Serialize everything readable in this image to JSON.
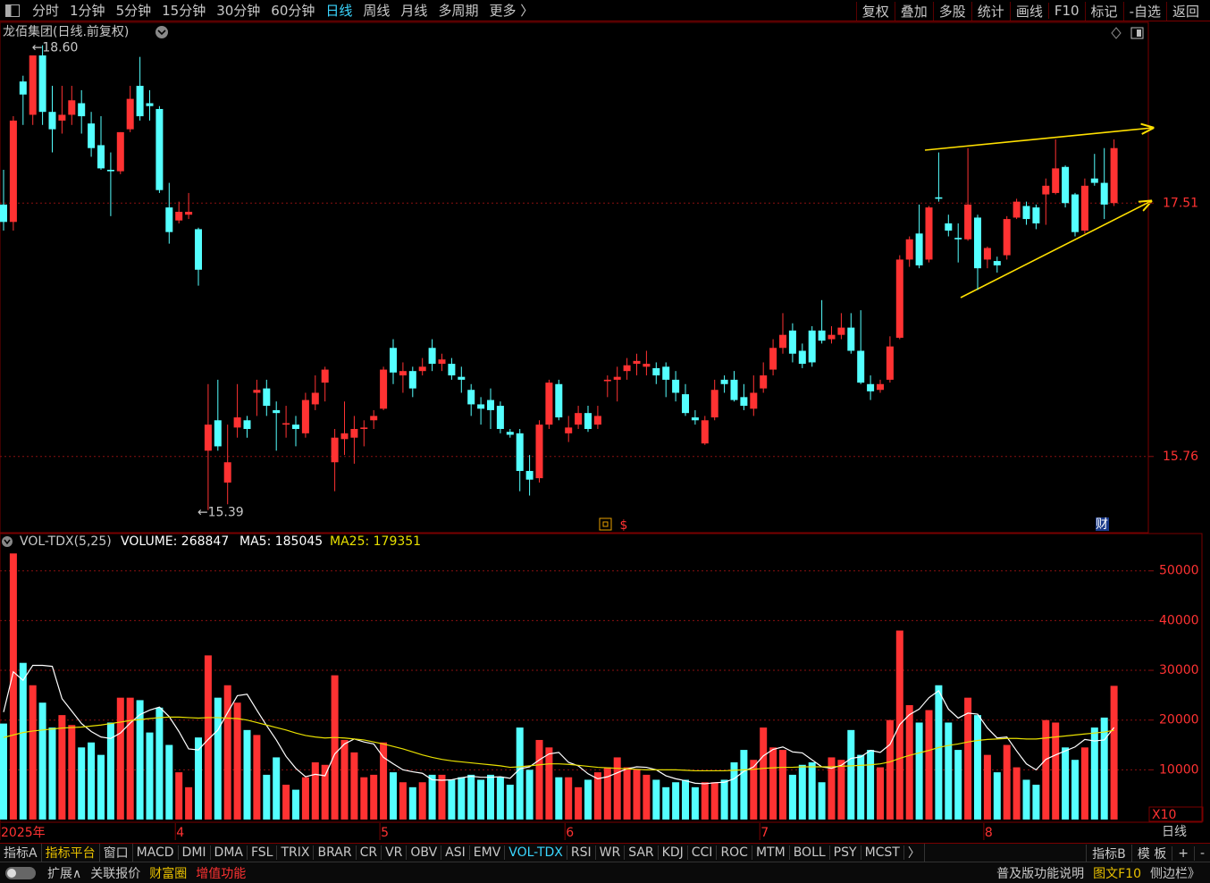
{
  "toolbar": {
    "left": [
      {
        "text": "分时"
      },
      {
        "text": "1分钟"
      },
      {
        "text": "5分钟"
      },
      {
        "text": "15分钟"
      },
      {
        "text": "30分钟"
      },
      {
        "text": "60分钟"
      },
      {
        "text": "日线",
        "color": "#3ad6ff"
      },
      {
        "text": "周线"
      },
      {
        "text": "月线"
      },
      {
        "text": "多周期"
      },
      {
        "text": "更多 〉"
      }
    ],
    "right": [
      {
        "text": "复权"
      },
      {
        "text": "叠加"
      },
      {
        "text": "多股"
      },
      {
        "text": "统计"
      },
      {
        "text": "画线"
      },
      {
        "text": "F10"
      },
      {
        "text": "标记"
      },
      {
        "text": "-自选"
      },
      {
        "text": "返回"
      }
    ]
  },
  "title": "龙佰集团(日线.前复权)",
  "event_markers": [
    "$",
    "财"
  ],
  "chart_data": [
    {
      "type": "candlestick",
      "ylim": [
        15.24,
        18.74
      ],
      "yticks": [
        15.76,
        17.51
      ],
      "grid": true,
      "up_color": "#ff3232",
      "down_color": "#54ffff",
      "flat_color": "#ffffff",
      "open": [
        17.5,
        17.38,
        18.35,
        18.12,
        18.53,
        18.14,
        18.08,
        18.12,
        18.2,
        18.06,
        17.91,
        17.74,
        17.73,
        18.02,
        18.32,
        18.2,
        18.16,
        17.48,
        17.39,
        17.43,
        17.33,
        15.8,
        16.01,
        15.58,
        15.96,
        16.01,
        16.2,
        16.23,
        16.08,
        15.98,
        15.98,
        15.92,
        16.12,
        16.27,
        15.72,
        15.88,
        15.89,
        15.95,
        16.01,
        16.09,
        16.51,
        16.32,
        16.35,
        16.35,
        16.51,
        16.4,
        16.4,
        16.31,
        16.22,
        16.12,
        16.15,
        16.11,
        15.93,
        15.92,
        15.66,
        15.61,
        15.98,
        16.26,
        15.92,
        15.98,
        16.06,
        15.98,
        16.28,
        16.29,
        16.35,
        16.4,
        16.38,
        16.37,
        16.38,
        16.29,
        16.19,
        16.03,
        15.85,
        16.03,
        16.29,
        16.29,
        16.17,
        16.09,
        16.23,
        16.36,
        16.51,
        16.63,
        16.49,
        16.63,
        16.63,
        16.57,
        16.6,
        16.65,
        16.49,
        16.26,
        16.22,
        16.29,
        16.58,
        17.12,
        17.3,
        17.12,
        17.55,
        17.37,
        17.27,
        17.26,
        17.41,
        17.12,
        17.11,
        17.15,
        17.41,
        17.49,
        17.48,
        17.57,
        17.58,
        17.76,
        17.57,
        17.32,
        17.68,
        17.65,
        17.51
      ],
      "high": [
        17.74,
        18.11,
        18.39,
        18.52,
        18.6,
        18.32,
        18.32,
        18.32,
        18.29,
        18.14,
        18.11,
        17.86,
        18.0,
        18.32,
        18.52,
        18.29,
        18.18,
        17.65,
        17.52,
        17.58,
        17.34,
        16.26,
        16.29,
        15.98,
        16.26,
        16.04,
        16.29,
        16.29,
        16.14,
        16.11,
        16.04,
        16.2,
        16.32,
        16.38,
        15.95,
        16.14,
        16.04,
        16.01,
        16.08,
        16.38,
        16.57,
        16.41,
        16.38,
        16.44,
        16.57,
        16.47,
        16.44,
        16.38,
        16.26,
        16.17,
        16.23,
        16.14,
        15.95,
        15.95,
        15.77,
        16.01,
        16.29,
        16.29,
        16.04,
        16.11,
        16.11,
        16.11,
        16.32,
        16.38,
        16.44,
        16.47,
        16.49,
        16.41,
        16.41,
        16.35,
        16.26,
        16.08,
        16.04,
        16.29,
        16.32,
        16.35,
        16.26,
        16.32,
        16.41,
        16.57,
        16.75,
        16.68,
        16.54,
        16.66,
        16.84,
        16.66,
        16.75,
        16.75,
        16.77,
        16.32,
        16.29,
        16.59,
        17.15,
        17.28,
        17.5,
        17.49,
        17.86,
        17.43,
        17.37,
        17.89,
        17.43,
        17.21,
        17.14,
        17.42,
        17.54,
        17.52,
        17.5,
        17.68,
        17.95,
        17.77,
        17.58,
        17.68,
        17.85,
        17.89,
        17.95
      ],
      "low": [
        17.32,
        17.32,
        18.05,
        18.05,
        18.05,
        17.86,
        17.99,
        18.05,
        17.99,
        17.83,
        17.74,
        17.42,
        17.71,
        18.0,
        18.08,
        18.08,
        17.58,
        17.23,
        17.37,
        17.4,
        16.94,
        15.39,
        15.8,
        15.43,
        15.89,
        15.89,
        16.04,
        16.04,
        15.8,
        15.89,
        15.83,
        15.89,
        16.08,
        16.14,
        15.52,
        15.77,
        15.71,
        15.83,
        15.95,
        16.08,
        16.26,
        16.2,
        16.17,
        16.32,
        16.35,
        16.35,
        16.29,
        16.2,
        16.04,
        15.98,
        15.95,
        15.92,
        15.89,
        15.52,
        15.49,
        15.58,
        15.95,
        16.01,
        15.86,
        15.95,
        15.93,
        15.95,
        16.17,
        16.14,
        16.29,
        16.32,
        16.32,
        16.26,
        16.17,
        16.14,
        16.04,
        15.98,
        15.84,
        16.01,
        16.2,
        16.14,
        16.08,
        16.04,
        16.2,
        16.32,
        16.47,
        16.41,
        16.37,
        16.38,
        16.54,
        16.54,
        16.57,
        16.47,
        16.26,
        16.15,
        16.2,
        16.27,
        16.57,
        17.07,
        17.06,
        17.1,
        17.52,
        17.28,
        17.1,
        17.25,
        16.91,
        17.06,
        17.03,
        17.12,
        17.4,
        17.36,
        17.33,
        17.36,
        17.57,
        17.48,
        17.28,
        17.3,
        17.63,
        17.4,
        17.49
      ],
      "close": [
        17.38,
        18.08,
        18.26,
        18.53,
        18.14,
        18.02,
        18.12,
        18.22,
        18.11,
        17.89,
        17.75,
        17.73,
        18.0,
        18.23,
        18.11,
        18.18,
        17.6,
        17.31,
        17.45,
        17.45,
        17.05,
        15.98,
        15.83,
        15.72,
        16.03,
        15.95,
        16.22,
        16.11,
        16.06,
        15.99,
        15.95,
        16.15,
        16.2,
        16.36,
        15.89,
        15.92,
        15.95,
        15.96,
        16.04,
        16.36,
        16.34,
        16.35,
        16.23,
        16.38,
        16.4,
        16.43,
        16.32,
        16.29,
        16.12,
        16.09,
        16.08,
        15.95,
        15.91,
        15.66,
        15.6,
        15.98,
        16.27,
        16.03,
        15.96,
        16.06,
        15.95,
        16.04,
        16.29,
        16.31,
        16.39,
        16.42,
        16.4,
        16.32,
        16.29,
        16.2,
        16.06,
        16.01,
        16.01,
        16.22,
        16.26,
        16.15,
        16.11,
        16.2,
        16.32,
        16.51,
        16.6,
        16.47,
        16.4,
        16.41,
        16.56,
        16.6,
        16.65,
        16.49,
        16.27,
        16.21,
        16.26,
        16.52,
        17.12,
        17.26,
        17.08,
        17.48,
        17.54,
        17.32,
        17.26,
        17.5,
        17.06,
        17.2,
        17.08,
        17.4,
        17.52,
        17.4,
        17.37,
        17.63,
        17.75,
        17.51,
        17.31,
        17.63,
        17.65,
        17.5,
        17.89
      ],
      "annotations": [
        {
          "x": 4,
          "value": 18.6,
          "label": "←18.60"
        },
        {
          "x": 21,
          "value": 15.39,
          "label": "←15.39"
        }
      ]
    },
    {
      "type": "bar",
      "title": "VOL-TDX(5,25)",
      "volume_label": "VOLUME: 268847",
      "ylim": [
        0,
        57500
      ],
      "yticks": [
        10000,
        20000,
        30000,
        40000,
        50000
      ],
      "grid": true,
      "scale_note": "X10",
      "period_label": "日线",
      "xticks": [
        {
          "value": 0,
          "label": "2025年"
        },
        {
          "value": 18,
          "label": "4"
        },
        {
          "value": 39,
          "label": "5"
        },
        {
          "value": 58,
          "label": "6"
        },
        {
          "value": 78,
          "label": "7"
        },
        {
          "value": 101,
          "label": "8"
        }
      ],
      "values": [
        19300,
        53500,
        31500,
        27000,
        23500,
        18500,
        21000,
        19000,
        14500,
        15500,
        13000,
        19500,
        24500,
        24500,
        24000,
        17500,
        22500,
        15000,
        9500,
        6500,
        16500,
        33000,
        24500,
        27000,
        23500,
        18000,
        17000,
        9000,
        12500,
        7000,
        6000,
        8500,
        11500,
        11000,
        29000,
        16000,
        13500,
        8500,
        9000,
        15500,
        9500,
        7500,
        6500,
        7500,
        9000,
        9000,
        8000,
        8500,
        9000,
        8000,
        9000,
        8500,
        7000,
        18500,
        10000,
        16000,
        14500,
        8500,
        8500,
        6500,
        8000,
        9500,
        10500,
        12500,
        10500,
        10000,
        9000,
        8000,
        6500,
        7500,
        8000,
        6500,
        7500,
        7500,
        8000,
        11500,
        14000,
        12000,
        18500,
        14500,
        14000,
        9000,
        11000,
        11500,
        7500,
        12500,
        12000,
        18000,
        13000,
        14000,
        10500,
        20000,
        38000,
        23000,
        19500,
        22000,
        27000,
        19500,
        14000,
        24500,
        21000,
        13000,
        9500,
        15000,
        10500,
        8000,
        7000,
        20000,
        19500,
        14500,
        12000,
        14500,
        18500,
        20500,
        26885
      ],
      "series": [
        {
          "label": "MA5: 185045",
          "color": "#ffffff",
          "values": [
            21600,
            29700,
            28000,
            31000,
            31000,
            30800,
            24300,
            21800,
            19300,
            17700,
            16600,
            16300,
            17400,
            19400,
            21100,
            22000,
            22600,
            20700,
            17700,
            14200,
            14000,
            16100,
            18000,
            21500,
            24900,
            25200,
            22000,
            18900,
            16000,
            12700,
            10300,
            8600,
            9100,
            8800,
            13200,
            15200,
            16200,
            15600,
            15200,
            12500,
            11200,
            10000,
            9600,
            9300,
            8000,
            7900,
            8000,
            8400,
            8700,
            8500,
            8500,
            8600,
            8300,
            10200,
            10600,
            12000,
            13200,
            13500,
            11500,
            10800,
            9200,
            8200,
            8600,
            9400,
            10200,
            10600,
            10500,
            10000,
            8800,
            8200,
            7800,
            7300,
            7200,
            7400,
            7500,
            8200,
            9700,
            10600,
            12800,
            14100,
            14600,
            13600,
            13400,
            12000,
            10600,
            10300,
            10900,
            12300,
            12600,
            13900,
            13500,
            15100,
            19100,
            21100,
            22200,
            24500,
            25900,
            22200,
            20400,
            21400,
            21200,
            18400,
            16400,
            16600,
            13800,
            11200,
            10000,
            12100,
            13000,
            13800,
            14600,
            16100,
            15800,
            16000,
            18505
          ]
        },
        {
          "label": "MA25: 179351",
          "color": "#e8e000",
          "values": [
            16500,
            17000,
            17500,
            17800,
            18000,
            18200,
            18400,
            18500,
            18600,
            18800,
            19000,
            19300,
            19600,
            19900,
            20100,
            20300,
            20500,
            20600,
            20600,
            20500,
            20400,
            20500,
            20500,
            20400,
            20300,
            20000,
            19500,
            19000,
            18500,
            18000,
            17400,
            16900,
            16600,
            16400,
            16500,
            16400,
            16200,
            16000,
            15600,
            15200,
            14700,
            14200,
            13600,
            13000,
            12500,
            12100,
            11800,
            11600,
            11400,
            11200,
            11000,
            10800,
            10500,
            10600,
            10800,
            11000,
            11200,
            11200,
            11100,
            10900,
            10700,
            10500,
            10400,
            10300,
            10200,
            10100,
            10000,
            10000,
            10000,
            10000,
            9900,
            9800,
            9800,
            9800,
            9800,
            9900,
            10000,
            10100,
            10300,
            10400,
            10500,
            10500,
            10600,
            10600,
            10600,
            10600,
            10700,
            10800,
            10900,
            11000,
            11200,
            11600,
            12300,
            12900,
            13400,
            13900,
            14500,
            14900,
            15200,
            15600,
            15900,
            16100,
            16200,
            16300,
            16300,
            16200,
            16200,
            16400,
            16600,
            16800,
            17000,
            17200,
            17400,
            17600,
            17935
          ]
        }
      ]
    }
  ],
  "tabs": [
    {
      "text": "指标A"
    },
    {
      "text": "指标平台",
      "color": "#e8c000"
    },
    {
      "text": "窗口"
    },
    {
      "text": "MACD"
    },
    {
      "text": "DMI"
    },
    {
      "text": "DMA"
    },
    {
      "text": "FSL"
    },
    {
      "text": "TRIX"
    },
    {
      "text": "BRAR"
    },
    {
      "text": "CR"
    },
    {
      "text": "VR"
    },
    {
      "text": "OBV"
    },
    {
      "text": "ASI"
    },
    {
      "text": "EMV"
    },
    {
      "text": "VOL-TDX",
      "color": "#3ad6ff"
    },
    {
      "text": "RSI"
    },
    {
      "text": "WR"
    },
    {
      "text": "SAR"
    },
    {
      "text": "KDJ"
    },
    {
      "text": "CCI"
    },
    {
      "text": "ROC"
    },
    {
      "text": "MTM"
    },
    {
      "text": "BOLL"
    },
    {
      "text": "PSY"
    },
    {
      "text": "MCST"
    },
    {
      "text": "〉"
    }
  ],
  "tabs_right": [
    {
      "text": "指标B"
    },
    {
      "text": "模 板"
    },
    {
      "text": "+"
    },
    {
      "text": "-"
    }
  ],
  "status_left": [
    {
      "text": "扩展∧"
    },
    {
      "text": "关联报价"
    },
    {
      "text": "财富圈",
      "color": "#e8c000"
    },
    {
      "text": "增值功能",
      "color": "#ff3232"
    }
  ],
  "status_right": [
    {
      "text": "普及版功能说明"
    },
    {
      "text": "图文F10",
      "color": "#e8c000"
    },
    {
      "text": "侧边栏》"
    }
  ]
}
